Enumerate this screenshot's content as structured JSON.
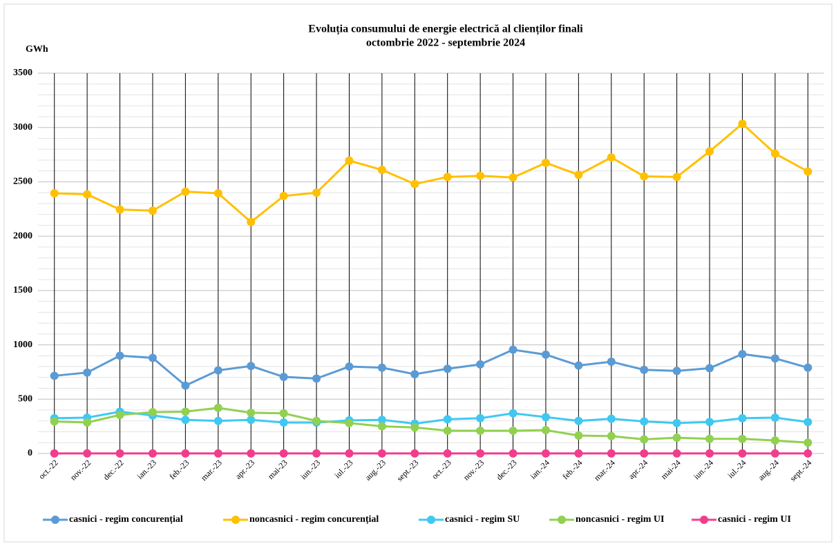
{
  "chart_data": {
    "type": "line",
    "title": "Evoluția consumului de energie electrică al clienților finali",
    "subtitle": "octombrie 2022 - septembrie 2024",
    "y_label": "GWh",
    "categories": [
      "oct.-22",
      "nov.-22",
      "dec.-22",
      "ian.-23",
      "feb.-23",
      "mar.-23",
      "apr.-23",
      "mai-23",
      "iun.-23",
      "iul.-23",
      "aug.-23",
      "sept.-23",
      "oct.-23",
      "nov.-23",
      "dec.-23",
      "ian.-24",
      "feb.-24",
      "mar.-24",
      "apr.-24",
      "mai-24",
      "iun.-24",
      "iul.-24",
      "aug.-24",
      "sept.-24"
    ],
    "series": [
      {
        "name": "casnici - regim concurențial",
        "color": "#5b9bd5",
        "values": [
          715,
          745,
          900,
          880,
          625,
          765,
          805,
          705,
          690,
          800,
          790,
          730,
          780,
          820,
          955,
          910,
          810,
          845,
          770,
          760,
          785,
          915,
          875,
          790
        ]
      },
      {
        "name": "noncasnici - regim concurențial",
        "color": "#ffc000",
        "values": [
          2395,
          2385,
          2245,
          2235,
          2410,
          2395,
          2130,
          2370,
          2400,
          2695,
          2610,
          2480,
          2545,
          2555,
          2540,
          2675,
          2565,
          2725,
          2550,
          2545,
          2780,
          3035,
          2760,
          2595
        ]
      },
      {
        "name": "casnici - regim SU",
        "color": "#3fc8f2",
        "values": [
          325,
          330,
          385,
          350,
          310,
          300,
          310,
          285,
          285,
          305,
          310,
          275,
          315,
          325,
          370,
          335,
          300,
          320,
          295,
          280,
          290,
          325,
          330,
          290
        ]
      },
      {
        "name": "noncasnici - regim UI",
        "color": "#92d050",
        "values": [
          295,
          285,
          355,
          380,
          385,
          420,
          375,
          370,
          300,
          280,
          250,
          240,
          210,
          210,
          210,
          215,
          165,
          160,
          130,
          145,
          135,
          135,
          120,
          100
        ]
      },
      {
        "name": "casnici - regim UI",
        "color": "#f23c8c",
        "values": [
          1,
          1,
          1,
          1,
          1,
          1,
          1,
          1,
          1,
          1,
          1,
          1,
          1,
          1,
          1,
          1,
          1,
          1,
          1,
          1,
          1,
          1,
          1,
          1
        ]
      }
    ],
    "ylim": [
      0,
      3500
    ],
    "yticks": [
      0,
      500,
      1000,
      1500,
      2000,
      2500,
      3000,
      3500
    ],
    "grid": true
  }
}
